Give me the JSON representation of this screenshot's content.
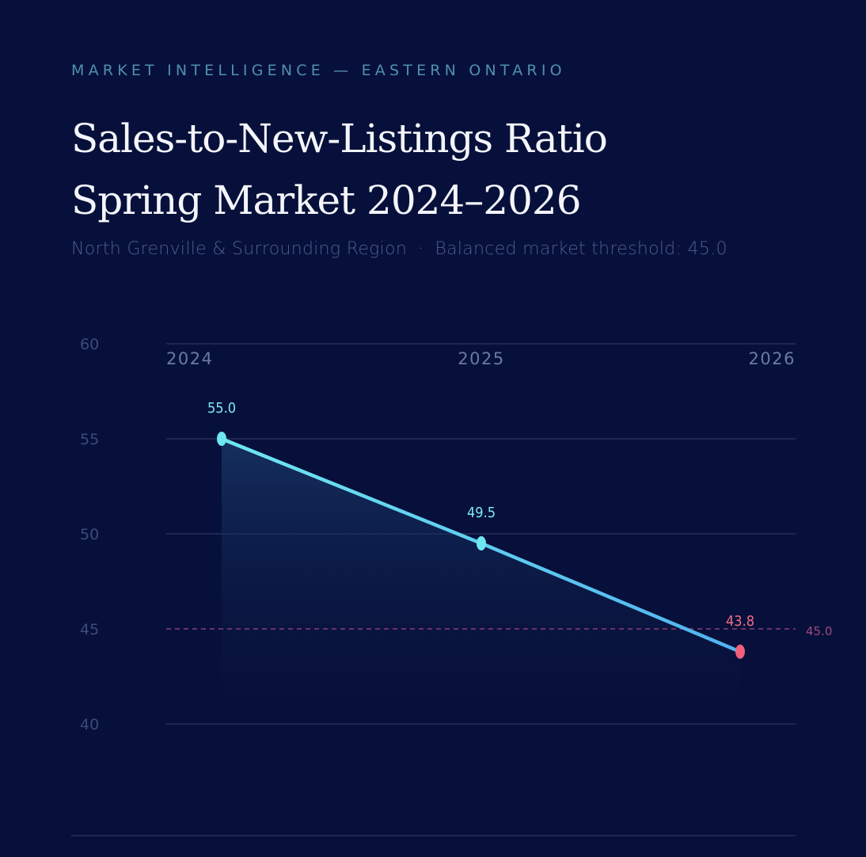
{
  "header": {
    "eyebrow": "MARKET INTELLIGENCE — EASTERN ONTARIO",
    "title_line1": "Sales-to-New-Listings Ratio",
    "title_line2": "Spring Market 2024–2026",
    "subtitle_region": "North Grenville & Surrounding Region",
    "subtitle_separator": "·",
    "subtitle_threshold": "Balanced market threshold: 45.0"
  },
  "colors": {
    "background": "#07103a",
    "line_start": "#6ee7f0",
    "line_end": "#4fb3f0",
    "point_normal": "#6ee7f0",
    "point_below_threshold": "#f0607a",
    "threshold": "#8a3f74",
    "gridline": "#1c2752"
  },
  "chart_data": {
    "type": "line",
    "title": "Sales-to-New-Listings Ratio Spring Market 2024–2026",
    "subtitle": "North Grenville & Surrounding Region · Balanced market threshold: 45.0",
    "categories": [
      "2024",
      "2025",
      "2026"
    ],
    "series": [
      {
        "name": "Sales-to-New-Listings Ratio",
        "values": [
          55.0,
          49.5,
          43.8
        ]
      }
    ],
    "data_labels": [
      "55.0",
      "49.5",
      "43.8"
    ],
    "xlabel": "",
    "ylabel": "",
    "ylim": [
      40,
      60
    ],
    "yticks": [
      "60",
      "55",
      "50",
      "45",
      "40"
    ],
    "threshold": {
      "value": 45.0,
      "label": "45.0",
      "style": "dashed"
    },
    "grid": true,
    "legend": "none",
    "area_fill": true
  }
}
